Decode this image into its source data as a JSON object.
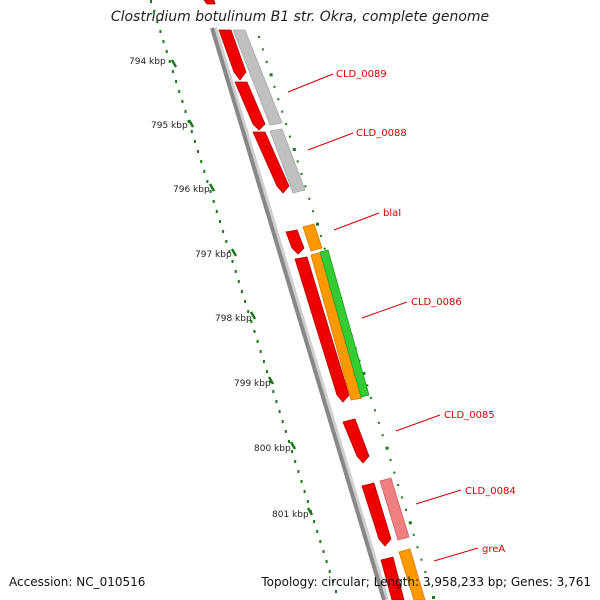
{
  "title": "Clostridium botulinum B1 str. Okra, complete genome",
  "footer": {
    "accession": "Accession: NC_010516",
    "summary": "Topology: circular; Length: 3,958,233 bp; Genes: 3,761"
  },
  "kbp_labels": [
    "794 kbp",
    "795 kbp",
    "796 kbp",
    "797 kbp",
    "798 kbp",
    "799 kbp",
    "800 kbp",
    "801 kbp"
  ],
  "gene_labels": [
    "CLD_0089",
    "CLD_0088",
    "blaI",
    "CLD_0086",
    "CLD_0085",
    "CLD_0084",
    "greA"
  ],
  "colors": {
    "cds": "#ee0000",
    "cds_shade": "#b80000",
    "gray_feature": "#c0c0c0",
    "orange_feature": "#ff9900",
    "green_feature": "#33cc33",
    "pink_feature": "#f08080",
    "backbone": "#888888",
    "ticks": "#1a7a1a",
    "label": "#d40000"
  }
}
